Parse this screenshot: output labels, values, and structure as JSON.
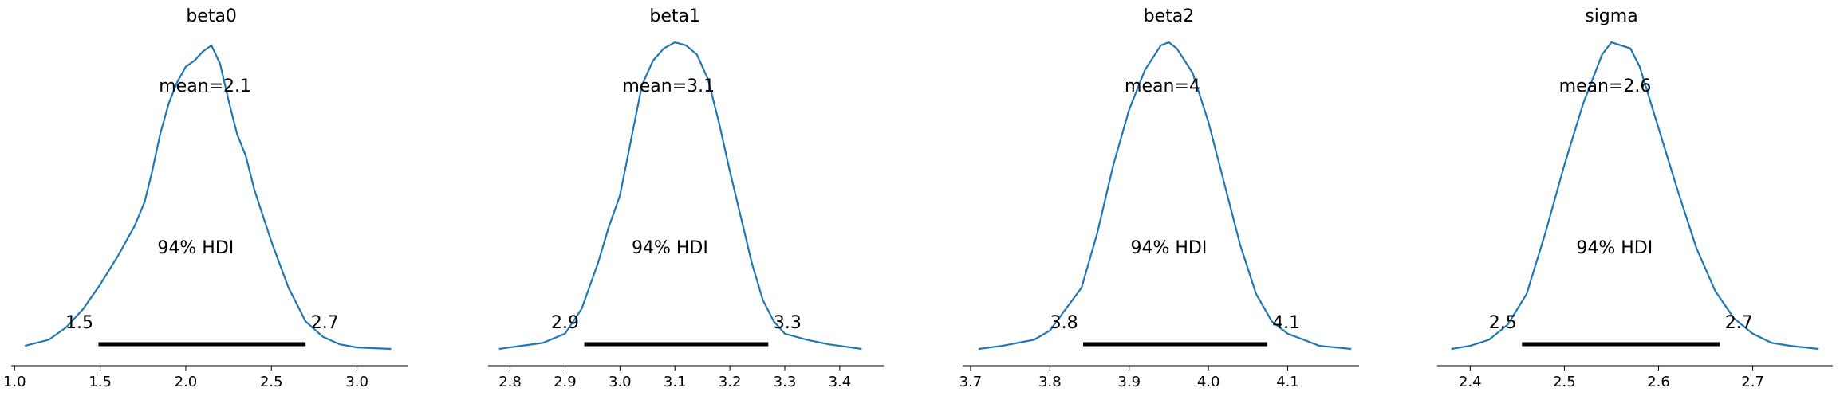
{
  "chart_data": [
    {
      "type": "line",
      "title": "beta0",
      "mean_label": "mean=2.1",
      "hdi_label": "94% HDI",
      "hdi": [
        1.49,
        2.7
      ],
      "hdi_low_label": "1.5",
      "hdi_high_label": "2.7",
      "xlim": [
        0.98,
        3.3
      ],
      "xticks": [
        1.0,
        1.5,
        2.0,
        2.5,
        3.0
      ],
      "xtick_labels": [
        "1.0",
        "1.5",
        "2.0",
        "2.5",
        "3.0"
      ],
      "density": {
        "x": [
          1.06,
          1.2,
          1.3,
          1.4,
          1.5,
          1.6,
          1.7,
          1.76,
          1.8,
          1.85,
          1.9,
          1.95,
          2.0,
          2.05,
          2.1,
          2.15,
          2.2,
          2.25,
          2.3,
          2.35,
          2.4,
          2.5,
          2.6,
          2.7,
          2.8,
          2.9,
          3.0,
          3.2
        ],
        "y": [
          0.01,
          0.03,
          0.07,
          0.13,
          0.21,
          0.3,
          0.4,
          0.48,
          0.57,
          0.7,
          0.8,
          0.87,
          0.92,
          0.94,
          0.97,
          0.99,
          0.93,
          0.81,
          0.7,
          0.63,
          0.52,
          0.35,
          0.2,
          0.09,
          0.04,
          0.015,
          0.005,
          0.0
        ]
      }
    },
    {
      "type": "line",
      "title": "beta1",
      "mean_label": "mean=3.1",
      "hdi_label": "94% HDI",
      "hdi": [
        2.935,
        3.27
      ],
      "hdi_low_label": "2.9",
      "hdi_high_label": "3.3",
      "xlim": [
        2.76,
        3.48
      ],
      "xticks": [
        2.8,
        2.9,
        3.0,
        3.1,
        3.2,
        3.3,
        3.4
      ],
      "xtick_labels": [
        "2.8",
        "2.9",
        "3.0",
        "3.1",
        "3.2",
        "3.3",
        "3.4"
      ],
      "density": {
        "x": [
          2.78,
          2.82,
          2.86,
          2.9,
          2.93,
          2.96,
          2.98,
          3.0,
          3.02,
          3.04,
          3.06,
          3.08,
          3.1,
          3.12,
          3.14,
          3.16,
          3.18,
          3.2,
          3.22,
          3.24,
          3.26,
          3.28,
          3.3,
          3.34,
          3.38,
          3.44
        ],
        "y": [
          0.0,
          0.01,
          0.02,
          0.05,
          0.13,
          0.28,
          0.4,
          0.5,
          0.68,
          0.86,
          0.94,
          0.98,
          1.0,
          0.99,
          0.96,
          0.88,
          0.74,
          0.58,
          0.43,
          0.28,
          0.16,
          0.09,
          0.05,
          0.03,
          0.015,
          0.0
        ]
      }
    },
    {
      "type": "line",
      "title": "beta2",
      "mean_label": "mean=4",
      "hdi_label": "94% HDI",
      "hdi": [
        3.842,
        4.074
      ],
      "hdi_low_label": "3.8",
      "hdi_high_label": "4.1",
      "xlim": [
        3.69,
        4.19
      ],
      "xticks": [
        3.7,
        3.8,
        3.9,
        4.0,
        4.1
      ],
      "xtick_labels": [
        "3.7",
        "3.8",
        "3.9",
        "4.0",
        "4.1"
      ],
      "density": {
        "x": [
          3.71,
          3.74,
          3.78,
          3.8,
          3.82,
          3.84,
          3.86,
          3.88,
          3.9,
          3.92,
          3.94,
          3.95,
          3.96,
          3.98,
          4.0,
          4.02,
          4.04,
          4.06,
          4.08,
          4.1,
          4.12,
          4.14,
          4.18
        ],
        "y": [
          0.0,
          0.01,
          0.03,
          0.06,
          0.13,
          0.2,
          0.38,
          0.6,
          0.78,
          0.91,
          0.99,
          1.0,
          0.98,
          0.9,
          0.74,
          0.54,
          0.34,
          0.18,
          0.09,
          0.05,
          0.03,
          0.01,
          0.0
        ]
      }
    },
    {
      "type": "line",
      "title": "sigma",
      "mean_label": "mean=2.6",
      "hdi_label": "94% HDI",
      "hdi": [
        2.455,
        2.665
      ],
      "hdi_low_label": "2.5",
      "hdi_high_label": "2.7",
      "xlim": [
        2.365,
        2.785
      ],
      "xticks": [
        2.4,
        2.5,
        2.6,
        2.7
      ],
      "xtick_labels": [
        "2.4",
        "2.5",
        "2.6",
        "2.7"
      ],
      "density": {
        "x": [
          2.38,
          2.4,
          2.42,
          2.44,
          2.46,
          2.48,
          2.5,
          2.52,
          2.54,
          2.55,
          2.56,
          2.57,
          2.58,
          2.6,
          2.62,
          2.64,
          2.66,
          2.68,
          2.7,
          2.72,
          2.74,
          2.77
        ],
        "y": [
          0.0,
          0.01,
          0.03,
          0.08,
          0.18,
          0.38,
          0.6,
          0.8,
          0.96,
          1.0,
          0.99,
          0.98,
          0.92,
          0.72,
          0.52,
          0.33,
          0.19,
          0.1,
          0.05,
          0.02,
          0.01,
          0.0
        ]
      }
    }
  ]
}
